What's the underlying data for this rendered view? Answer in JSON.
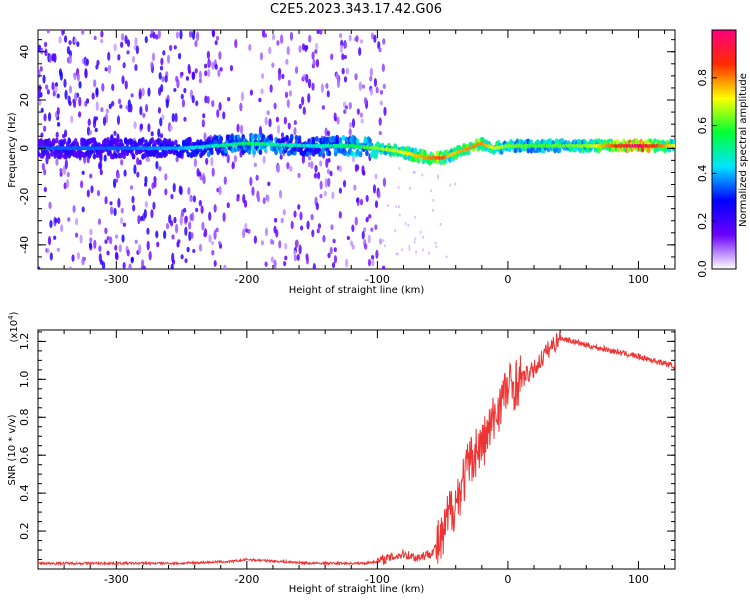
{
  "title": "C2E5.2023.343.17.42.G06",
  "chart_data": [
    {
      "type": "heatmap",
      "xlabel": "Height of straight line (km)",
      "ylabel": "Frequency (Hz)",
      "xlim": [
        -360,
        128
      ],
      "ylim": [
        -50,
        49
      ],
      "xticks": [
        -300,
        -200,
        -100,
        0,
        100
      ],
      "yticks": [
        -40,
        -20,
        0,
        20,
        40
      ],
      "colorbar": {
        "label": "Normalized spectral amplitude",
        "range": [
          0.0,
          1.0
        ],
        "ticks": [
          "0.0",
          "0.2",
          "0.4",
          "0.6",
          "0.8"
        ],
        "colors": [
          "#ffffff",
          "#6a00ff",
          "#0000ff",
          "#00e5ff",
          "#00ff33",
          "#ffff00",
          "#ff2a00",
          "#ff007f"
        ]
      },
      "ridge": {
        "x": [
          -360,
          -300,
          -250,
          -200,
          -150,
          -120,
          -100,
          -85,
          -70,
          -60,
          -50,
          -45,
          -40,
          -30,
          -20,
          -10,
          0,
          20,
          60,
          100,
          128
        ],
        "y": [
          0,
          0,
          0,
          2,
          1,
          1,
          0,
          -1,
          -3,
          -4,
          -4,
          -3,
          -2,
          0,
          2,
          0,
          1,
          1,
          1,
          1,
          1
        ],
        "amplitude": [
          0.25,
          0.25,
          0.3,
          0.45,
          0.35,
          0.45,
          0.55,
          0.6,
          0.65,
          0.7,
          0.75,
          0.65,
          0.65,
          0.7,
          0.7,
          0.6,
          0.55,
          0.5,
          0.55,
          0.9,
          0.6
        ]
      }
    },
    {
      "type": "line",
      "xlabel": "Height of straight line (km)",
      "ylabel": "SNR (10 * v/v)",
      "ylabel_scale": "(x10",
      "ylabel_exp": "4",
      "ylabel_close": ")",
      "xlim": [
        -360,
        128
      ],
      "ylim": [
        0,
        1.26
      ],
      "xticks": [
        -300,
        -200,
        -100,
        0,
        100
      ],
      "yticks": [
        0.2,
        0.4,
        0.6,
        0.8,
        1.0,
        1.2
      ],
      "color": "#ee3333",
      "series": [
        {
          "x": [
            -360,
            -300,
            -250,
            -210,
            -200,
            -150,
            -110,
            -100,
            -90,
            -80,
            -70,
            -60,
            -50,
            -45,
            -40,
            -35,
            -30,
            -25,
            -20,
            -15,
            -10,
            -5,
            0,
            10,
            20,
            30,
            40,
            50,
            60,
            80,
            100,
            128
          ],
          "y": [
            0.03,
            0.03,
            0.03,
            0.04,
            0.05,
            0.03,
            0.03,
            0.04,
            0.06,
            0.08,
            0.06,
            0.08,
            0.15,
            0.3,
            0.35,
            0.45,
            0.55,
            0.62,
            0.65,
            0.72,
            0.8,
            0.9,
            0.95,
            1.0,
            1.05,
            1.15,
            1.22,
            1.2,
            1.18,
            1.15,
            1.12,
            1.07
          ]
        }
      ]
    }
  ]
}
